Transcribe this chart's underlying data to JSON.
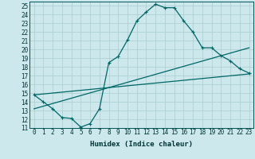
{
  "xlabel": "Humidex (Indice chaleur)",
  "bg_color": "#cce8ec",
  "grid_color": "#aacccc",
  "line_color": "#006666",
  "xlim": [
    -0.5,
    23.5
  ],
  "ylim": [
    11,
    25.5
  ],
  "xticks": [
    0,
    1,
    2,
    3,
    4,
    5,
    6,
    7,
    8,
    9,
    10,
    11,
    12,
    13,
    14,
    15,
    16,
    17,
    18,
    19,
    20,
    21,
    22,
    23
  ],
  "yticks": [
    11,
    12,
    13,
    14,
    15,
    16,
    17,
    18,
    19,
    20,
    21,
    22,
    23,
    24,
    25
  ],
  "curve1_x": [
    0,
    1,
    2,
    3,
    4,
    5,
    6,
    7,
    8,
    9,
    10,
    11,
    12,
    13,
    14,
    15,
    16,
    17,
    18,
    19,
    20,
    21,
    22,
    23
  ],
  "curve1_y": [
    14.8,
    14.0,
    13.2,
    12.2,
    12.1,
    11.1,
    11.5,
    13.2,
    18.5,
    19.2,
    21.1,
    23.3,
    24.3,
    25.2,
    24.8,
    24.8,
    23.3,
    22.0,
    20.2,
    20.2,
    19.3,
    18.7,
    17.8,
    17.3
  ],
  "curve2_x": [
    0,
    23
  ],
  "curve2_y": [
    13.2,
    20.2
  ],
  "curve3_x": [
    0,
    23
  ],
  "curve3_y": [
    14.8,
    17.2
  ],
  "marker": "+",
  "tick_fontsize": 5.5,
  "xlabel_fontsize": 6.5
}
